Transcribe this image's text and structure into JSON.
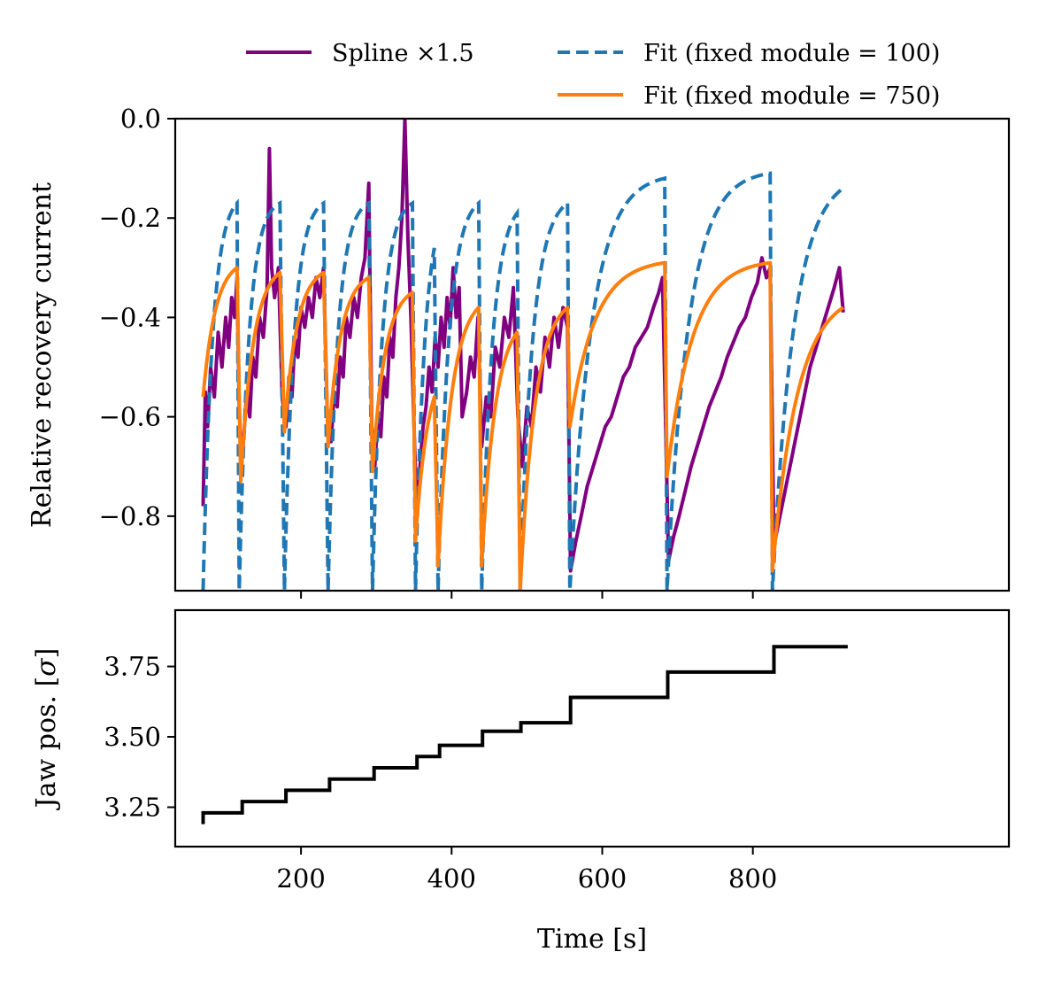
{
  "chart_data": [
    {
      "type": "line",
      "panel": "top",
      "xlabel": "",
      "ylabel": "Relative recovery current",
      "xlim": [
        33,
        1140
      ],
      "ylim": [
        -0.95,
        0.0
      ],
      "yticks": [
        -0.8,
        -0.6,
        -0.4,
        -0.2,
        0.0
      ],
      "ytick_labels": [
        "−0.8",
        "−0.6",
        "−0.4",
        "−0.2",
        "0.0"
      ],
      "xticks": [
        200,
        400,
        600,
        800
      ],
      "legend_position": "top, above plot",
      "series": [
        {
          "name": "Spline ×1.5",
          "color": "#800080",
          "style": "solid",
          "points": [
            [
              70,
              -0.78
            ],
            [
              73,
              -0.55
            ],
            [
              76,
              -0.62
            ],
            [
              80,
              -0.5
            ],
            [
              85,
              -0.56
            ],
            [
              90,
              -0.43
            ],
            [
              95,
              -0.5
            ],
            [
              100,
              -0.4
            ],
            [
              104,
              -0.46
            ],
            [
              108,
              -0.36
            ],
            [
              112,
              -0.4
            ],
            [
              115,
              -0.32
            ],
            [
              118,
              -0.58
            ],
            [
              121,
              -0.7
            ],
            [
              124,
              -0.64
            ],
            [
              128,
              -0.55
            ],
            [
              132,
              -0.6
            ],
            [
              136,
              -0.48
            ],
            [
              140,
              -0.52
            ],
            [
              145,
              -0.4
            ],
            [
              150,
              -0.44
            ],
            [
              155,
              -0.34
            ],
            [
              158,
              -0.06
            ],
            [
              161,
              -0.3
            ],
            [
              165,
              -0.36
            ],
            [
              170,
              -0.3
            ],
            [
              175,
              -0.56
            ],
            [
              180,
              -0.62
            ],
            [
              184,
              -0.52
            ],
            [
              188,
              -0.56
            ],
            [
              192,
              -0.44
            ],
            [
              196,
              -0.48
            ],
            [
              200,
              -0.38
            ],
            [
              205,
              -0.42
            ],
            [
              210,
              -0.36
            ],
            [
              215,
              -0.4
            ],
            [
              220,
              -0.32
            ],
            [
              225,
              -0.36
            ],
            [
              230,
              -0.3
            ],
            [
              235,
              -0.6
            ],
            [
              240,
              -0.65
            ],
            [
              244,
              -0.55
            ],
            [
              248,
              -0.58
            ],
            [
              252,
              -0.48
            ],
            [
              256,
              -0.52
            ],
            [
              260,
              -0.4
            ],
            [
              265,
              -0.44
            ],
            [
              270,
              -0.36
            ],
            [
              275,
              -0.4
            ],
            [
              280,
              -0.32
            ],
            [
              285,
              -0.28
            ],
            [
              290,
              -0.13
            ],
            [
              294,
              -0.62
            ],
            [
              298,
              -0.7
            ],
            [
              302,
              -0.6
            ],
            [
              306,
              -0.64
            ],
            [
              310,
              -0.52
            ],
            [
              314,
              -0.56
            ],
            [
              318,
              -0.44
            ],
            [
              322,
              -0.48
            ],
            [
              326,
              -0.36
            ],
            [
              330,
              -0.3
            ],
            [
              334,
              -0.2
            ],
            [
              338,
              0.0
            ],
            [
              342,
              -0.24
            ],
            [
              346,
              -0.4
            ],
            [
              350,
              -0.62
            ],
            [
              354,
              -0.8
            ],
            [
              358,
              -0.7
            ],
            [
              362,
              -0.62
            ],
            [
              366,
              -0.58
            ],
            [
              370,
              -0.5
            ],
            [
              374,
              -0.55
            ],
            [
              378,
              -0.44
            ],
            [
              382,
              -0.5
            ],
            [
              386,
              -0.4
            ],
            [
              390,
              -0.46
            ],
            [
              394,
              -0.36
            ],
            [
              398,
              -0.42
            ],
            [
              402,
              -0.3
            ],
            [
              406,
              -0.4
            ],
            [
              410,
              -0.34
            ],
            [
              414,
              -0.6
            ],
            [
              420,
              -0.55
            ],
            [
              425,
              -0.48
            ],
            [
              430,
              -0.52
            ],
            [
              435,
              -0.4
            ],
            [
              440,
              -0.66
            ],
            [
              446,
              -0.56
            ],
            [
              452,
              -0.6
            ],
            [
              458,
              -0.46
            ],
            [
              464,
              -0.5
            ],
            [
              470,
              -0.4
            ],
            [
              476,
              -0.44
            ],
            [
              482,
              -0.34
            ],
            [
              488,
              -0.6
            ],
            [
              494,
              -0.7
            ],
            [
              500,
              -0.58
            ],
            [
              506,
              -0.62
            ],
            [
              512,
              -0.5
            ],
            [
              518,
              -0.55
            ],
            [
              524,
              -0.44
            ],
            [
              530,
              -0.5
            ],
            [
              536,
              -0.4
            ],
            [
              542,
              -0.46
            ],
            [
              548,
              -0.38
            ],
            [
              554,
              -0.42
            ],
            [
              558,
              -0.91
            ],
            [
              565,
              -0.85
            ],
            [
              572,
              -0.8
            ],
            [
              580,
              -0.74
            ],
            [
              588,
              -0.7
            ],
            [
              596,
              -0.66
            ],
            [
              604,
              -0.62
            ],
            [
              612,
              -0.6
            ],
            [
              620,
              -0.56
            ],
            [
              628,
              -0.52
            ],
            [
              636,
              -0.5
            ],
            [
              644,
              -0.46
            ],
            [
              652,
              -0.44
            ],
            [
              660,
              -0.42
            ],
            [
              668,
              -0.38
            ],
            [
              675,
              -0.35
            ],
            [
              680,
              -0.32
            ],
            [
              688,
              -0.89
            ],
            [
              695,
              -0.84
            ],
            [
              702,
              -0.8
            ],
            [
              710,
              -0.75
            ],
            [
              718,
              -0.7
            ],
            [
              726,
              -0.66
            ],
            [
              734,
              -0.62
            ],
            [
              742,
              -0.58
            ],
            [
              750,
              -0.55
            ],
            [
              758,
              -0.52
            ],
            [
              766,
              -0.48
            ],
            [
              774,
              -0.45
            ],
            [
              782,
              -0.42
            ],
            [
              790,
              -0.4
            ],
            [
              798,
              -0.36
            ],
            [
              806,
              -0.33
            ],
            [
              812,
              -0.28
            ],
            [
              818,
              -0.32
            ],
            [
              823,
              -0.3
            ],
            [
              828,
              -0.86
            ],
            [
              836,
              -0.8
            ],
            [
              844,
              -0.74
            ],
            [
              852,
              -0.68
            ],
            [
              860,
              -0.62
            ],
            [
              868,
              -0.56
            ],
            [
              876,
              -0.5
            ],
            [
              884,
              -0.46
            ],
            [
              892,
              -0.42
            ],
            [
              900,
              -0.38
            ],
            [
              908,
              -0.34
            ],
            [
              915,
              -0.3
            ],
            [
              920,
              -0.39
            ]
          ]
        },
        {
          "name": "Fit (fixed module = 100)",
          "color": "#1f77b4",
          "style": "dashed",
          "segments": [
            {
              "t0": 70,
              "t1": 115,
              "y_start": -0.95,
              "y_end": -0.17,
              "k": 0.08
            },
            {
              "t0": 118,
              "t1": 172,
              "y_start": -0.95,
              "y_end": -0.17,
              "k": 0.08
            },
            {
              "t0": 178,
              "t1": 230,
              "y_start": -0.95,
              "y_end": -0.17,
              "k": 0.08
            },
            {
              "t0": 236,
              "t1": 290,
              "y_start": -0.95,
              "y_end": -0.17,
              "k": 0.08
            },
            {
              "t0": 295,
              "t1": 348,
              "y_start": -0.95,
              "y_end": -0.17,
              "k": 0.08
            },
            {
              "t0": 352,
              "t1": 377,
              "y_start": -0.95,
              "y_end": -0.26,
              "k": 0.08
            },
            {
              "t0": 382,
              "t1": 436,
              "y_start": -0.95,
              "y_end": -0.17,
              "k": 0.07
            },
            {
              "t0": 440,
              "t1": 487,
              "y_start": -0.95,
              "y_end": -0.19,
              "k": 0.07
            },
            {
              "t0": 491,
              "t1": 554,
              "y_start": -0.95,
              "y_end": -0.17,
              "k": 0.06
            },
            {
              "t0": 557,
              "t1": 683,
              "y_start": -0.95,
              "y_end": -0.12,
              "k": 0.035
            },
            {
              "t0": 686,
              "t1": 823,
              "y_start": -0.95,
              "y_end": -0.11,
              "k": 0.035
            },
            {
              "t0": 826,
              "t1": 920,
              "y_start": -0.95,
              "y_end": -0.14,
              "k": 0.035
            }
          ]
        },
        {
          "name": "Fit (fixed module = 750)",
          "color": "#ff7f0e",
          "style": "solid",
          "segments": [
            {
              "t0": 70,
              "t1": 115,
              "y_start": -0.56,
              "y_end": -0.3,
              "k": 0.06
            },
            {
              "t0": 120,
              "t1": 172,
              "y_start": -0.73,
              "y_end": -0.31,
              "k": 0.06
            },
            {
              "t0": 178,
              "t1": 230,
              "y_start": -0.63,
              "y_end": -0.31,
              "k": 0.06
            },
            {
              "t0": 236,
              "t1": 290,
              "y_start": -0.66,
              "y_end": -0.32,
              "k": 0.06
            },
            {
              "t0": 295,
              "t1": 348,
              "y_start": -0.71,
              "y_end": -0.35,
              "k": 0.06
            },
            {
              "t0": 352,
              "t1": 377,
              "y_start": -0.85,
              "y_end": -0.56,
              "k": 0.06
            },
            {
              "t0": 382,
              "t1": 436,
              "y_start": -0.9,
              "y_end": -0.38,
              "k": 0.055
            },
            {
              "t0": 440,
              "t1": 487,
              "y_start": -0.9,
              "y_end": -0.43,
              "k": 0.055
            },
            {
              "t0": 491,
              "t1": 554,
              "y_start": -0.95,
              "y_end": -0.38,
              "k": 0.05
            },
            {
              "t0": 557,
              "t1": 683,
              "y_start": -0.62,
              "y_end": -0.29,
              "k": 0.03
            },
            {
              "t0": 686,
              "t1": 823,
              "y_start": -0.72,
              "y_end": -0.29,
              "k": 0.03
            },
            {
              "t0": 826,
              "t1": 920,
              "y_start": -0.91,
              "y_end": -0.38,
              "k": 0.03
            }
          ]
        }
      ]
    },
    {
      "type": "line",
      "panel": "bottom",
      "xlabel": "Time [s]",
      "ylabel": "Jaw pos. [σ]",
      "ylabel_text": "Jaw pos. [",
      "ylabel_symbol": "σ",
      "ylabel_close": "]",
      "xlim": [
        33,
        1140
      ],
      "ylim": [
        3.11,
        3.95
      ],
      "xticks": [
        200,
        400,
        600,
        800
      ],
      "xtick_labels": [
        "200",
        "400",
        "600",
        "800"
      ],
      "yticks": [
        3.25,
        3.5,
        3.75
      ],
      "ytick_labels": [
        "3.25",
        "3.50",
        "3.75"
      ],
      "series": [
        {
          "name": "",
          "color": "#000000",
          "style": "step",
          "x": [
            70,
            70,
            122,
            122,
            180,
            180,
            238,
            238,
            297,
            297,
            354,
            354,
            384,
            384,
            441,
            441,
            492,
            492,
            558,
            558,
            687,
            687,
            828,
            828,
            926
          ],
          "y": [
            3.19,
            3.23,
            3.23,
            3.27,
            3.27,
            3.31,
            3.31,
            3.35,
            3.35,
            3.39,
            3.39,
            3.43,
            3.43,
            3.47,
            3.47,
            3.52,
            3.52,
            3.55,
            3.55,
            3.64,
            3.64,
            3.73,
            3.73,
            3.82,
            3.82
          ]
        }
      ]
    }
  ]
}
